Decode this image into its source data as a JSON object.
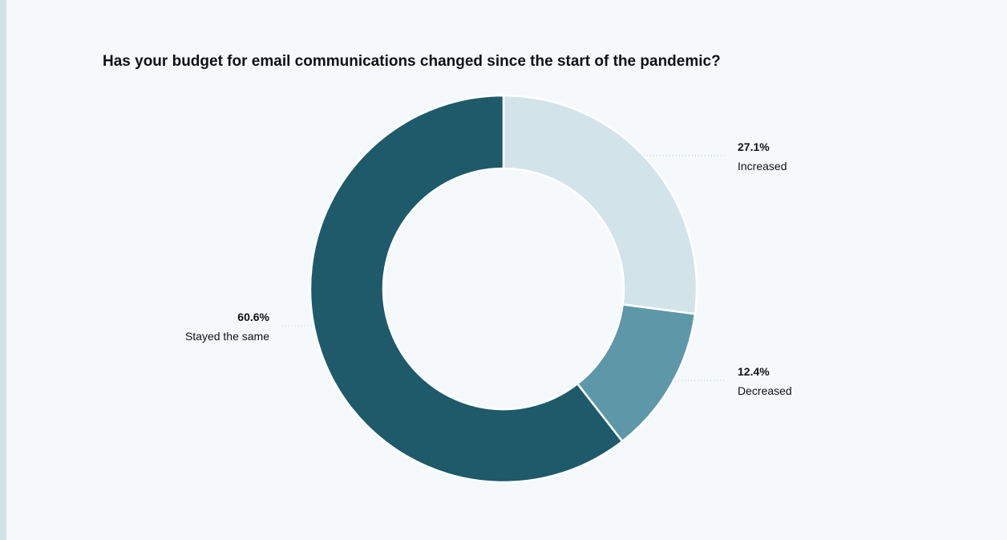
{
  "chart_data": {
    "type": "pie",
    "style": "donut",
    "title": "Has your budget for email communications changed since the start of the pandemic?",
    "slices": [
      {
        "label": "Increased",
        "value": 27.1,
        "value_label": "27.1%",
        "color": "#d3e3ea"
      },
      {
        "label": "Decreased",
        "value": 12.4,
        "value_label": "12.4%",
        "color": "#5e98a8"
      },
      {
        "label": "Stayed the same",
        "value": 60.6,
        "value_label": "60.6%",
        "color": "#1e5a6a"
      }
    ],
    "start_angle": "top",
    "direction": "clockwise",
    "legend": "none"
  },
  "colors": {
    "background": "#f5f9fc",
    "separator": "#ffffff"
  }
}
